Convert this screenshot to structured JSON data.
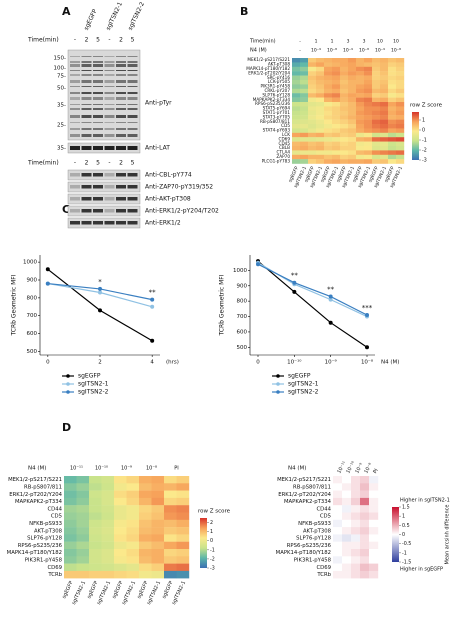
{
  "panels": {
    "a": "A",
    "b": "B",
    "c": "C",
    "d": "D"
  },
  "blot": {
    "lanes": [
      "sgEGFP",
      "sgITSN2-1",
      "sgITSN2-2"
    ],
    "time_label": "Time(min)",
    "time": [
      "-",
      "2",
      "5",
      "-",
      "2",
      "5"
    ],
    "mw": [
      "150-",
      "100-",
      "75-",
      "50-",
      "35-",
      "25-"
    ],
    "lat_mw": "35-",
    "top_labels": [
      "Anti-pTyr",
      "Anti-LAT"
    ],
    "time_label_2": "Time(min)",
    "time_2": [
      "-",
      "2",
      "5",
      "-",
      "2",
      "5"
    ],
    "bottom_labels": [
      "Anti-CBL-pY774",
      "Anti-ZAP70-pY319/352",
      "Anti-AKT-pT308",
      "Anti-ERK1/2-pY204/T202",
      "Anti-ERK1/2"
    ]
  },
  "chart_data": [
    {
      "type": "heatmap",
      "header": {
        "time_label": "Time(min)",
        "time": [
          "-",
          "1",
          "1",
          "3",
          "3",
          "10",
          "10"
        ],
        "dose_label": "N4 (M)",
        "dose": [
          "-",
          "10⁻⁹",
          "10⁻⁸",
          "10⁻⁹",
          "10⁻⁸",
          "10⁻⁹",
          "10⁻⁸"
        ]
      },
      "columns": [
        "sgEGFP",
        "sgITSN2-1",
        "sgEGFP",
        "sgITSN2-1",
        "sgEGFP",
        "sgITSN2-1",
        "sgEGFP",
        "sgITSN2-1",
        "sgEGFP",
        "sgITSN2-1",
        "sgEGFP",
        "sgITSN2-1",
        "sgEGFP",
        "sgITSN2-1"
      ],
      "rows": [
        "MEK1/2-pS217/S221",
        "AKT-pT308",
        "MAPK14-pT180/Y182",
        "ERK1/2-pT202/Y204",
        "SRC-pY416",
        "LCK-pY505",
        "PIK3R1-pY458",
        "CRKL-pY207",
        "SLP76-pY128",
        "MAPKAPK2-pT334",
        "RPS6-pS235/236",
        "STAT5-pY694",
        "STAT1-pY701",
        "STAT3-pY705",
        "RB-pS807/811",
        "CD5",
        "STAT4-pY693",
        "LCK",
        "CD69",
        "CD45",
        "CBLB",
        "CTLA4",
        "ZAP70",
        "PLCG1-pY783"
      ],
      "values": [
        [
          -2.6,
          -2.4,
          0.3,
          0.5,
          0.6,
          0.7,
          0.7,
          0.9,
          0.6,
          0.8,
          0.5,
          0.6,
          0.4,
          0.5
        ],
        [
          -2.2,
          -2.0,
          0.6,
          0.8,
          0.5,
          0.6,
          0.7,
          0.8,
          0.6,
          0.5,
          0.4,
          0.5,
          0.2,
          0.3
        ],
        [
          -1.8,
          -1.6,
          -0.2,
          0.1,
          0.8,
          0.9,
          0.6,
          0.8,
          1.0,
          1.1,
          0.3,
          0.5,
          0.0,
          0.2
        ],
        [
          -2.0,
          -1.9,
          0.2,
          0.4,
          0.9,
          1.0,
          0.7,
          0.9,
          0.8,
          1.0,
          0.2,
          0.4,
          0.0,
          0.1
        ],
        [
          -1.5,
          -1.3,
          0.4,
          0.6,
          0.7,
          0.8,
          0.5,
          0.7,
          0.6,
          0.7,
          0.2,
          0.3,
          0.1,
          0.2
        ],
        [
          -1.4,
          -1.2,
          0.3,
          0.5,
          0.6,
          0.7,
          0.4,
          0.6,
          0.6,
          0.8,
          0.3,
          0.4,
          0.0,
          0.1
        ],
        [
          -1.6,
          -1.5,
          0.2,
          0.4,
          0.7,
          0.9,
          0.5,
          0.6,
          0.8,
          0.9,
          0.3,
          0.5,
          -0.1,
          0.1
        ],
        [
          -1.3,
          -1.2,
          0.1,
          0.3,
          0.6,
          0.7,
          0.4,
          0.6,
          0.9,
          1.0,
          0.5,
          0.6,
          0.1,
          0.3
        ],
        [
          -1.9,
          -1.7,
          0.5,
          0.7,
          1.0,
          1.1,
          0.6,
          0.8,
          0.7,
          0.8,
          0.2,
          0.3,
          -0.2,
          0.0
        ],
        [
          -1.7,
          -1.6,
          -0.3,
          -0.1,
          0.6,
          0.8,
          0.5,
          0.7,
          1.1,
          1.2,
          0.6,
          0.7,
          0.2,
          0.4
        ],
        [
          -1.0,
          -0.9,
          -0.6,
          -0.5,
          -0.2,
          0.0,
          0.3,
          0.5,
          0.9,
          1.1,
          1.2,
          1.3,
          0.8,
          1.0
        ],
        [
          -1.2,
          -1.1,
          -0.4,
          -0.3,
          0.1,
          0.2,
          0.4,
          0.5,
          0.8,
          1.0,
          1.0,
          1.1,
          0.6,
          0.8
        ],
        [
          -1.1,
          -1.0,
          -0.5,
          -0.3,
          0.0,
          0.2,
          0.3,
          0.5,
          0.9,
          1.0,
          1.1,
          1.2,
          0.7,
          0.9
        ],
        [
          -1.0,
          -0.9,
          -0.4,
          -0.2,
          0.1,
          0.2,
          0.4,
          0.6,
          0.8,
          0.9,
          1.0,
          1.1,
          0.6,
          0.7
        ],
        [
          -0.8,
          -0.7,
          -0.6,
          -0.4,
          -0.1,
          0.1,
          0.2,
          0.4,
          0.9,
          1.0,
          1.3,
          1.4,
          1.0,
          1.1
        ],
        [
          -0.6,
          -0.5,
          -0.7,
          -0.5,
          -0.3,
          -0.1,
          0.0,
          0.2,
          0.8,
          1.0,
          1.2,
          1.3,
          1.1,
          1.2
        ],
        [
          -0.9,
          -0.8,
          -0.5,
          -0.3,
          0.0,
          0.1,
          0.3,
          0.4,
          0.7,
          0.9,
          1.0,
          1.1,
          0.8,
          0.9
        ],
        [
          0.8,
          0.9,
          0.6,
          0.7,
          0.3,
          0.4,
          0.2,
          0.3,
          -0.4,
          -0.2,
          -0.9,
          -0.7,
          -1.2,
          -1.0
        ],
        [
          -0.7,
          -0.6,
          -0.6,
          -0.5,
          -0.4,
          -0.3,
          -0.1,
          0.0,
          0.6,
          0.7,
          1.3,
          1.4,
          1.5,
          1.6
        ],
        [
          0.5,
          0.6,
          0.4,
          0.5,
          0.2,
          0.3,
          0.1,
          0.2,
          -0.3,
          -0.2,
          -0.6,
          -0.5,
          -1.0,
          -0.8
        ],
        [
          0.6,
          0.7,
          0.5,
          0.6,
          0.3,
          0.4,
          0.2,
          0.2,
          -0.2,
          -0.1,
          -0.7,
          -0.6,
          -1.1,
          -0.9
        ],
        [
          -0.5,
          -0.4,
          -0.4,
          -0.3,
          -0.3,
          -0.2,
          -0.1,
          0.0,
          0.5,
          0.6,
          1.0,
          1.1,
          1.2,
          1.3
        ],
        [
          0.7,
          0.8,
          0.6,
          0.6,
          0.4,
          0.5,
          0.2,
          0.3,
          -0.3,
          -0.2,
          -0.8,
          -0.6,
          -1.3,
          -1.1
        ],
        [
          -1.5,
          -1.4,
          0.2,
          0.4,
          0.7,
          0.8,
          0.6,
          0.7,
          0.7,
          0.8,
          0.3,
          0.4,
          -0.1,
          0.1
        ]
      ],
      "colormap": [
        "#3b6fb2",
        "#5db7a9",
        "#c9e38b",
        "#fbe98b",
        "#f7a25a",
        "#d7342b"
      ],
      "zlim": [
        -3,
        1.8
      ],
      "colorbar_label": "row Z score",
      "zticks": [
        1,
        0,
        -1,
        -2,
        -3
      ]
    },
    {
      "type": "line",
      "ylabel": "TCRb Geometric MFI",
      "xlabel": "(hrs)",
      "x": [
        0,
        2,
        4
      ],
      "xlim": [
        -0.3,
        4.3
      ],
      "xticks": [
        0,
        2,
        4
      ],
      "ylim": [
        480,
        1040
      ],
      "yticks": [
        500,
        600,
        700,
        800,
        900,
        1000
      ],
      "series": [
        {
          "name": "sgEGFP",
          "color": "#000000",
          "values": [
            960,
            730,
            560
          ]
        },
        {
          "name": "sgITSN2-1",
          "color": "#8fc1e3",
          "values": [
            880,
            830,
            750
          ]
        },
        {
          "name": "sgITSN2-2",
          "color": "#3a7fc1",
          "values": [
            880,
            850,
            790
          ]
        }
      ],
      "significance": [
        null,
        "*",
        "**"
      ]
    },
    {
      "type": "line",
      "ylabel": "TCRb Geometric MFI",
      "xlabel": "N4 (M)",
      "categories": [
        "0",
        "10⁻¹⁰",
        "10⁻⁹",
        "10⁻⁸"
      ],
      "ylim": [
        450,
        1100
      ],
      "yticks": [
        500,
        600,
        700,
        800,
        900,
        1000
      ],
      "series": [
        {
          "name": "sgEGFP",
          "color": "#000000",
          "values": [
            1060,
            860,
            660,
            500
          ]
        },
        {
          "name": "sgITSN2-1",
          "color": "#8fc1e3",
          "values": [
            1050,
            910,
            810,
            700
          ]
        },
        {
          "name": "sgITSN2-2",
          "color": "#3a7fc1",
          "values": [
            1040,
            920,
            830,
            710
          ]
        }
      ],
      "significance": [
        null,
        "**",
        "**",
        "***"
      ]
    },
    {
      "type": "heatmap",
      "header": {
        "dose_label": "N4 (M)",
        "dose": [
          "10⁻¹¹",
          "10⁻¹⁰",
          "10⁻⁹",
          "10⁻⁸",
          "PI"
        ]
      },
      "columns": [
        "sgEGFP",
        "sgITSN2-1",
        "sgEGFP",
        "sgITSN2-1",
        "sgEGFP",
        "sgITSN2-1",
        "sgEGFP",
        "sgITSN2-1",
        "sgEGFP",
        "sgITSN2-1"
      ],
      "rows": [
        "MEK1/2-pS217/S221",
        "RB-pS807/811",
        "ERK1/2-pT202/Y204",
        "MAPKAPK2-pT334",
        "CD44",
        "CD5",
        "NFKB-pS933",
        "AKT-pT308",
        "SLP76-pY128",
        "RPS6-pS235/236",
        "MAPK14-pT180/Y182",
        "PIK3R1-pY458",
        "CD69",
        "TCRb"
      ],
      "values": [
        [
          -1.8,
          -1.6,
          -0.8,
          -0.6,
          0.4,
          0.6,
          1.2,
          1.3,
          0.5,
          0.7
        ],
        [
          -1.5,
          -1.3,
          -0.9,
          -0.7,
          0.1,
          0.3,
          1.0,
          1.2,
          1.1,
          1.3
        ],
        [
          -1.7,
          -1.5,
          -0.7,
          -0.5,
          0.5,
          0.7,
          1.3,
          1.4,
          0.3,
          0.4
        ],
        [
          -1.6,
          -1.4,
          -0.8,
          -0.5,
          0.3,
          0.6,
          1.1,
          1.5,
          0.6,
          0.7
        ],
        [
          -1.2,
          -1.1,
          -0.8,
          -0.6,
          -0.1,
          0.1,
          0.6,
          0.8,
          1.6,
          1.7
        ],
        [
          -1.3,
          -1.2,
          -0.9,
          -0.7,
          -0.1,
          0.1,
          0.7,
          0.9,
          1.5,
          1.6
        ],
        [
          -1.4,
          -1.2,
          -0.7,
          -0.5,
          0.2,
          0.4,
          0.9,
          1.1,
          1.0,
          1.2
        ],
        [
          -1.5,
          -1.3,
          -0.6,
          -0.4,
          0.3,
          0.5,
          1.0,
          1.1,
          0.8,
          0.9
        ],
        [
          -1.6,
          -1.4,
          -0.7,
          -0.5,
          0.4,
          0.6,
          1.2,
          1.3,
          0.4,
          0.6
        ],
        [
          -1.3,
          -1.1,
          -0.8,
          -0.6,
          0.0,
          0.2,
          0.8,
          1.0,
          1.3,
          1.5
        ],
        [
          -1.5,
          -1.3,
          -0.6,
          -0.4,
          0.3,
          0.5,
          1.1,
          1.2,
          0.6,
          0.7
        ],
        [
          -1.4,
          -1.2,
          -0.6,
          -0.4,
          0.2,
          0.4,
          1.0,
          1.2,
          0.8,
          0.9
        ],
        [
          -0.9,
          -0.8,
          -0.7,
          -0.6,
          -0.4,
          -0.2,
          0.5,
          0.7,
          1.8,
          1.9
        ],
        [
          0.8,
          0.8,
          0.7,
          0.7,
          0.6,
          0.5,
          0.1,
          0.0,
          -2.6,
          -2.5
        ]
      ],
      "colormap": [
        "#3b6fb2",
        "#5db7a9",
        "#c9e38b",
        "#fbe98b",
        "#f7a25a",
        "#d7342b"
      ],
      "zlim": [
        -3,
        2.5
      ],
      "colorbar_label": "row Z score",
      "zticks": [
        2,
        1,
        0,
        -1,
        -2,
        -3
      ]
    },
    {
      "type": "heatmap",
      "header": {
        "dose_label": "N4 (M)",
        "dose": [
          "10⁻¹¹",
          "10⁻¹⁰",
          "10⁻⁹",
          "10⁻⁸",
          "PI"
        ]
      },
      "rows": [
        "MEK1/2-pS217/S221",
        "RB-pS807/811",
        "ERK1/2-pT202/Y204",
        "MAPKAPK2-pT334",
        "CD44",
        "CD5",
        "NFKB-pS933",
        "AKT-pT308",
        "SLP76-pY128",
        "RPS6-pS235/236",
        "MAPK14-pT180/Y182",
        "PIK3R1-pY458",
        "CD69",
        "TCRb"
      ],
      "values": [
        [
          0.1,
          0.0,
          0.2,
          0.3,
          -0.1
        ],
        [
          0.0,
          0.1,
          0.2,
          0.4,
          0.1
        ],
        [
          0.1,
          0.0,
          0.2,
          0.3,
          0.0
        ],
        [
          0.2,
          0.1,
          0.3,
          0.9,
          0.1
        ],
        [
          0.0,
          -0.1,
          0.1,
          0.2,
          0.1
        ],
        [
          0.0,
          0.1,
          0.2,
          0.3,
          0.2
        ],
        [
          -0.1,
          0.0,
          0.1,
          0.2,
          0.0
        ],
        [
          0.0,
          0.1,
          0.2,
          0.3,
          0.1
        ],
        [
          -0.1,
          -0.2,
          -0.1,
          0.2,
          0.0
        ],
        [
          0.0,
          0.1,
          0.1,
          0.2,
          0.1
        ],
        [
          0.0,
          0.1,
          0.2,
          0.3,
          0.0
        ],
        [
          -0.1,
          0.0,
          0.1,
          0.2,
          0.0
        ],
        [
          0.0,
          0.1,
          0.2,
          0.4,
          0.3
        ],
        [
          0.1,
          0.1,
          0.2,
          0.3,
          0.2
        ]
      ],
      "colormap": [
        "#2f3e9e",
        "#ffffff",
        "#c8102e"
      ],
      "zlim": [
        -1.5,
        1.5
      ],
      "colorbar_label": "Mean arcsinh difference",
      "zticks": [
        1.5,
        1,
        0.5,
        0,
        -0.5,
        -1,
        -1.5
      ],
      "high_label": "Higher in sgITSN2-1",
      "low_label": "Higher in sgEGFP"
    }
  ]
}
